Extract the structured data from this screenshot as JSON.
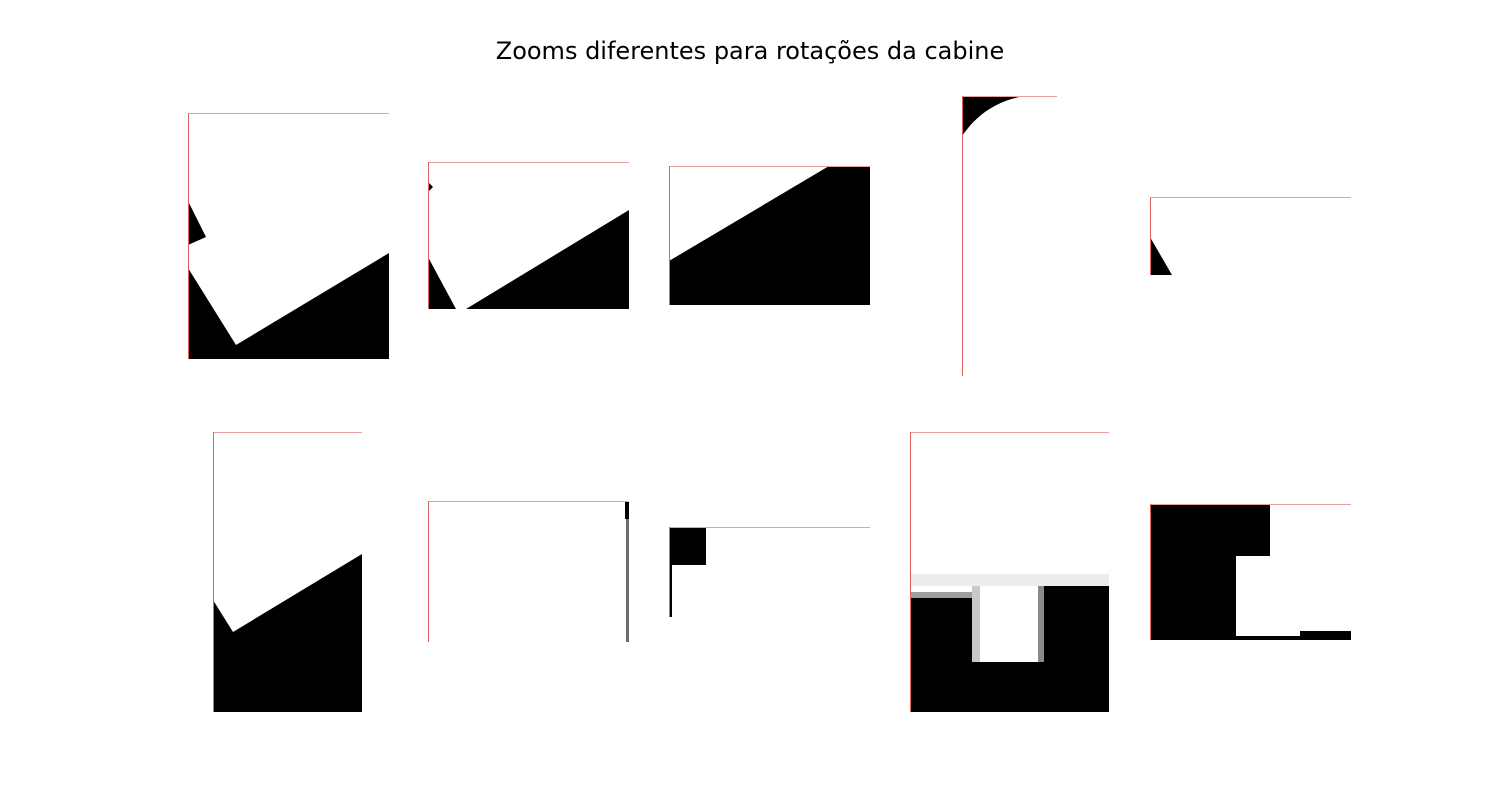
{
  "figure": {
    "title": "Zooms diferentes para rotações da cabine"
  },
  "colors": {
    "foreground": "#000000",
    "background": "#ffffff",
    "frame_edge": "#e06060"
  },
  "panels": [
    {
      "id": "p1",
      "row": 1,
      "col": 1
    },
    {
      "id": "p2",
      "row": 1,
      "col": 2
    },
    {
      "id": "p3",
      "row": 1,
      "col": 3
    },
    {
      "id": "p4",
      "row": 1,
      "col": 4
    },
    {
      "id": "p5",
      "row": 1,
      "col": 5
    },
    {
      "id": "p6",
      "row": 2,
      "col": 1
    },
    {
      "id": "p7",
      "row": 2,
      "col": 2
    },
    {
      "id": "p8",
      "row": 2,
      "col": 3
    },
    {
      "id": "p9",
      "row": 2,
      "col": 4
    },
    {
      "id": "p10",
      "row": 2,
      "col": 5
    }
  ]
}
